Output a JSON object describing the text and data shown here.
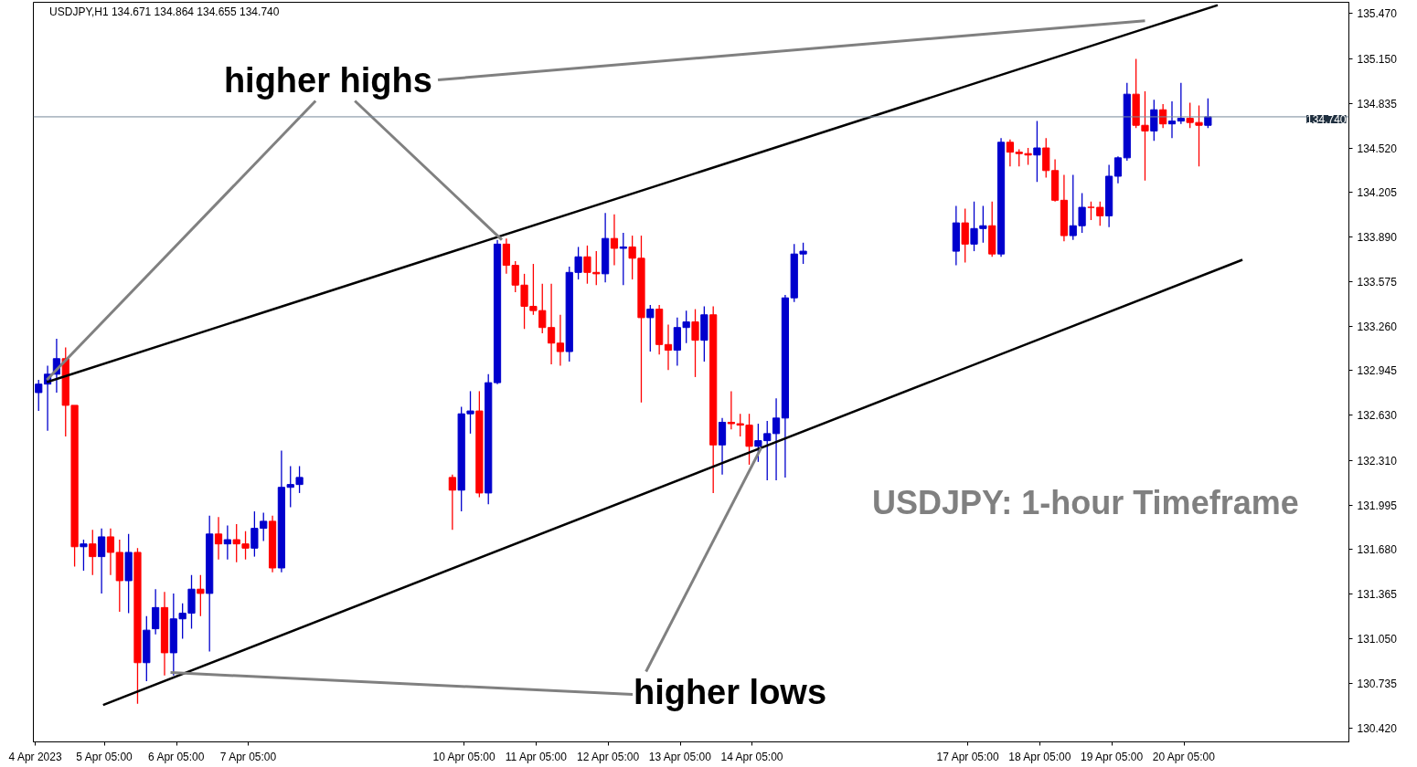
{
  "chart_data": {
    "type": "candlestick",
    "title": "USDJPY,H1  134.671 134.864 134.655 134.740",
    "annotations": [
      {
        "text": "higher highs",
        "x": "2023-04-10T17:30",
        "y": 133.87
      },
      {
        "text": "higher lows",
        "x": "2023-04-14T08:00",
        "y": 132.4
      },
      "USDJPY: 1-hour Timeframe"
    ],
    "x": [
      "2023-04-04T07:00",
      "2023-04-04T10:00",
      "2023-04-04T13:00",
      "2023-04-04T16:00",
      "2023-04-04T19:00",
      "2023-04-04T22:00",
      "2023-04-05T01:00",
      "2023-04-05T04:00",
      "2023-04-05T07:00",
      "2023-04-05T10:00",
      "2023-04-05T13:00",
      "2023-04-05T16:00",
      "2023-04-05T19:00",
      "2023-04-05T22:00",
      "2023-04-06T01:00",
      "2023-04-06T04:00",
      "2023-04-06T07:00",
      "2023-04-06T10:00",
      "2023-04-06T13:00",
      "2023-04-06T16:00",
      "2023-04-06T19:00",
      "2023-04-06T22:00",
      "2023-04-07T01:00",
      "2023-04-07T04:00",
      "2023-04-07T07:00",
      "2023-04-07T10:00",
      "2023-04-07T13:00",
      "2023-04-07T16:00",
      "2023-04-07T19:00",
      "2023-04-07T22:00",
      "2023-04-10T01:00",
      "2023-04-10T04:00",
      "2023-04-10T07:00",
      "2023-04-10T10:00",
      "2023-04-10T13:00",
      "2023-04-10T16:00",
      "2023-04-10T19:00",
      "2023-04-10T22:00",
      "2023-04-11T01:00",
      "2023-04-11T04:00",
      "2023-04-11T07:00",
      "2023-04-11T10:00",
      "2023-04-11T13:00",
      "2023-04-11T16:00",
      "2023-04-11T19:00",
      "2023-04-11T22:00",
      "2023-04-12T01:00",
      "2023-04-12T04:00",
      "2023-04-12T07:00",
      "2023-04-12T10:00",
      "2023-04-12T13:00",
      "2023-04-12T16:00",
      "2023-04-12T19:00",
      "2023-04-12T22:00",
      "2023-04-13T01:00",
      "2023-04-13T04:00",
      "2023-04-13T07:00",
      "2023-04-13T10:00",
      "2023-04-13T13:00",
      "2023-04-13T16:00",
      "2023-04-13T19:00",
      "2023-04-13T22:00",
      "2023-04-14T01:00",
      "2023-04-14T04:00",
      "2023-04-14T07:00",
      "2023-04-14T10:00",
      "2023-04-14T13:00",
      "2023-04-14T16:00",
      "2023-04-14T19:00",
      "2023-04-14T22:00",
      "2023-04-17T01:00",
      "2023-04-17T04:00",
      "2023-04-17T07:00",
      "2023-04-17T10:00",
      "2023-04-17T13:00",
      "2023-04-17T16:00",
      "2023-04-17T19:00",
      "2023-04-17T22:00",
      "2023-04-18T01:00",
      "2023-04-18T04:00",
      "2023-04-18T07:00",
      "2023-04-18T10:00",
      "2023-04-18T13:00",
      "2023-04-18T16:00",
      "2023-04-18T19:00",
      "2023-04-18T22:00",
      "2023-04-19T01:00",
      "2023-04-19T04:00",
      "2023-04-19T07:00",
      "2023-04-19T10:00",
      "2023-04-19T13:00",
      "2023-04-19T16:00",
      "2023-04-19T19:00",
      "2023-04-19T22:00",
      "2023-04-20T01:00",
      "2023-04-20T04:00",
      "2023-04-20T07:00",
      "2023-04-20T10:00",
      "2023-04-20T13:00"
    ],
    "ohlc": [
      [
        132.79,
        132.88,
        132.66,
        132.85
      ],
      [
        132.85,
        132.98,
        132.52,
        132.92
      ],
      [
        132.92,
        133.17,
        132.79,
        133.03
      ],
      [
        133.03,
        133.11,
        132.48,
        132.7
      ],
      [
        132.7,
        132.7,
        131.56,
        131.7
      ],
      [
        131.7,
        131.75,
        131.53,
        131.72
      ],
      [
        131.72,
        131.82,
        131.5,
        131.63
      ],
      [
        131.63,
        131.83,
        131.37,
        131.77
      ],
      [
        131.77,
        131.83,
        131.5,
        131.66
      ],
      [
        131.66,
        131.75,
        131.24,
        131.46
      ],
      [
        131.46,
        131.79,
        131.23,
        131.66
      ],
      [
        131.66,
        131.69,
        130.59,
        130.88
      ],
      [
        130.88,
        131.21,
        130.75,
        131.11
      ],
      [
        131.12,
        131.4,
        131.08,
        131.27
      ],
      [
        131.27,
        131.38,
        130.79,
        130.95
      ],
      [
        130.95,
        131.37,
        130.79,
        131.19
      ],
      [
        131.19,
        131.3,
        131.05,
        131.23
      ],
      [
        131.23,
        131.5,
        131.12,
        131.4
      ],
      [
        131.4,
        131.5,
        131.21,
        131.37
      ],
      [
        131.37,
        131.92,
        130.96,
        131.79
      ],
      [
        131.79,
        131.91,
        131.61,
        131.72
      ],
      [
        131.72,
        131.85,
        131.61,
        131.75
      ],
      [
        131.75,
        131.86,
        131.59,
        131.72
      ],
      [
        131.72,
        131.81,
        131.61,
        131.69
      ],
      [
        131.69,
        131.95,
        131.63,
        131.83
      ],
      [
        131.83,
        131.94,
        131.74,
        131.88
      ],
      [
        131.88,
        131.92,
        131.52,
        131.55
      ],
      [
        131.55,
        132.38,
        131.52,
        132.12
      ],
      [
        132.12,
        132.27,
        131.98,
        132.14
      ],
      [
        132.14,
        132.27,
        132.08,
        132.19
      ],
      [
        132.19,
        132.21,
        131.82,
        132.1
      ],
      [
        132.1,
        132.69,
        131.95,
        132.64
      ],
      [
        132.64,
        132.8,
        132.5,
        132.66
      ],
      [
        132.66,
        132.8,
        132.05,
        132.08
      ],
      [
        132.08,
        132.92,
        132.0,
        132.86
      ],
      [
        132.86,
        133.87,
        132.85,
        133.84
      ],
      [
        133.84,
        133.88,
        133.63,
        133.69
      ],
      [
        133.69,
        133.72,
        133.5,
        133.55
      ],
      [
        133.55,
        133.63,
        133.24,
        133.4
      ],
      [
        133.4,
        133.7,
        133.34,
        133.37
      ],
      [
        133.37,
        133.56,
        133.21,
        133.25
      ],
      [
        133.25,
        133.56,
        132.99,
        133.14
      ],
      [
        133.14,
        133.34,
        132.98,
        133.08
      ],
      [
        133.08,
        133.68,
        133.01,
        133.64
      ],
      [
        133.64,
        133.82,
        133.59,
        133.75
      ],
      [
        133.75,
        133.83,
        133.56,
        133.64
      ],
      [
        133.64,
        133.79,
        133.55,
        133.63
      ],
      [
        133.63,
        134.06,
        133.57,
        133.88
      ],
      [
        133.88,
        134.05,
        133.69,
        133.81
      ],
      [
        133.81,
        133.92,
        133.55,
        133.82
      ],
      [
        133.82,
        133.9,
        133.59,
        133.74
      ],
      [
        133.74,
        133.9,
        132.72,
        133.32
      ],
      [
        133.32,
        133.41,
        133.08,
        133.38
      ],
      [
        133.38,
        133.41,
        133.06,
        133.13
      ],
      [
        133.13,
        133.27,
        132.95,
        133.09
      ],
      [
        133.09,
        133.32,
        132.98,
        133.25
      ],
      [
        133.25,
        133.37,
        133.14,
        133.29
      ],
      [
        133.29,
        133.38,
        132.9,
        133.16
      ],
      [
        133.16,
        133.4,
        133.01,
        133.34
      ],
      [
        133.34,
        133.4,
        132.08,
        132.42
      ],
      [
        132.42,
        132.61,
        132.21,
        132.58
      ],
      [
        132.58,
        132.8,
        132.53,
        132.57
      ],
      [
        132.57,
        132.64,
        132.48,
        132.56
      ],
      [
        132.56,
        132.64,
        132.28,
        132.41
      ],
      [
        132.41,
        132.57,
        132.3,
        132.45
      ],
      [
        132.45,
        132.59,
        132.17,
        132.5
      ],
      [
        132.5,
        132.75,
        132.17,
        132.61
      ],
      [
        132.61,
        133.48,
        132.19,
        133.46
      ],
      [
        133.46,
        133.84,
        133.43,
        133.77
      ],
      [
        133.77,
        133.85,
        133.7,
        133.79
      ],
      [
        133.79,
        134.11,
        133.69,
        133.99
      ],
      [
        133.99,
        134.09,
        133.71,
        133.84
      ],
      [
        133.84,
        134.14,
        133.79,
        133.95
      ],
      [
        133.95,
        134.11,
        133.85,
        133.97
      ],
      [
        133.97,
        134.14,
        133.75,
        133.77
      ],
      [
        133.77,
        134.59,
        133.75,
        134.56
      ],
      [
        134.56,
        134.58,
        134.39,
        134.49
      ],
      [
        134.49,
        134.51,
        134.39,
        134.48
      ],
      [
        134.48,
        134.52,
        134.4,
        134.47
      ],
      [
        134.47,
        134.71,
        134.28,
        134.52
      ],
      [
        134.52,
        134.59,
        134.31,
        134.36
      ],
      [
        134.36,
        134.44,
        134.14,
        134.15
      ],
      [
        134.15,
        134.33,
        133.86,
        133.9
      ],
      [
        133.9,
        134.33,
        133.87,
        133.97
      ],
      [
        133.97,
        134.2,
        133.92,
        134.1
      ],
      [
        134.1,
        134.14,
        134.01,
        134.1
      ],
      [
        134.1,
        134.14,
        133.97,
        134.04
      ],
      [
        134.04,
        134.4,
        133.96,
        134.32
      ],
      [
        134.32,
        134.46,
        134.27,
        134.45
      ],
      [
        134.45,
        134.98,
        134.43,
        134.9
      ],
      [
        134.9,
        135.15,
        134.66,
        134.68
      ],
      [
        134.68,
        134.92,
        134.29,
        134.64
      ],
      [
        134.64,
        134.86,
        134.57,
        134.79
      ],
      [
        134.79,
        134.83,
        134.66,
        134.69
      ],
      [
        134.69,
        134.85,
        134.59,
        134.71
      ],
      [
        134.71,
        134.98,
        134.69,
        134.73
      ],
      [
        134.73,
        134.84,
        134.66,
        134.7
      ],
      [
        134.7,
        134.82,
        134.39,
        134.68
      ],
      [
        134.68,
        134.87,
        134.66,
        134.74
      ]
    ],
    "colors": [
      "#0000cd",
      "#0000cd",
      "#0000cd",
      "#ff0000",
      "#ff0000",
      "#0000cd",
      "#ff0000",
      "#0000cd",
      "#ff0000",
      "#ff0000",
      "#0000cd",
      "#ff0000",
      "#0000cd",
      "#0000cd",
      "#ff0000",
      "#0000cd",
      "#0000cd",
      "#0000cd",
      "#ff0000",
      "#0000cd",
      "#ff0000",
      "#0000cd",
      "#ff0000",
      "#ff0000",
      "#0000cd",
      "#0000cd",
      "#ff0000",
      "#0000cd",
      "#0000cd",
      "#0000cd",
      "#ff0000",
      "#0000cd",
      "#0000cd",
      "#ff0000",
      "#0000cd",
      "#0000cd",
      "#ff0000",
      "#ff0000",
      "#ff0000",
      "#ff0000",
      "#ff0000",
      "#ff0000",
      "#ff0000",
      "#0000cd",
      "#0000cd",
      "#ff0000",
      "#ff0000",
      "#0000cd",
      "#ff0000",
      "#0000cd",
      "#ff0000",
      "#ff0000",
      "#0000cd",
      "#ff0000",
      "#ff0000",
      "#0000cd",
      "#0000cd",
      "#ff0000",
      "#0000cd",
      "#ff0000",
      "#0000cd",
      "#ff0000",
      "#ff0000",
      "#ff0000",
      "#0000cd",
      "#0000cd",
      "#0000cd",
      "#0000cd",
      "#0000cd",
      "#0000cd",
      "#0000cd",
      "#ff0000",
      "#0000cd",
      "#0000cd",
      "#ff0000",
      "#0000cd",
      "#ff0000",
      "#ff0000",
      "#ff0000",
      "#0000cd",
      "#ff0000",
      "#ff0000",
      "#ff0000",
      "#0000cd",
      "#0000cd",
      "#ff0000",
      "#ff0000",
      "#0000cd",
      "#0000cd",
      "#0000cd",
      "#ff0000",
      "#ff0000",
      "#0000cd",
      "#ff0000",
      "#0000cd",
      "#0000cd",
      "#ff0000",
      "#ff0000",
      "#0000cd"
    ],
    "series": [
      {
        "type": "line",
        "color": "#000000",
        "line_style": "solid",
        "x": [
          "2023-04-04T09:45",
          "2023-04-20T16:15"
        ],
        "values": [
          132.864,
          135.53
        ]
      },
      {
        "type": "line",
        "color": "#000000",
        "line_style": "solid",
        "x": [
          "2023-04-05T04:30",
          "2023-04-21T00:30"
        ],
        "values": [
          130.581,
          133.729
        ]
      }
    ],
    "ref_lines": [
      {
        "axis": "y",
        "value": 134.74,
        "label": "134.740",
        "color": "#778899"
      }
    ],
    "xlim": [
      "2023-04-04T05:15",
      "2023-04-22T12:00"
    ],
    "ylim": [
      130.32,
      135.55
    ],
    "xticks": [
      {
        "value": "2023-04-04T06:00",
        "label": "4 Apr 2023"
      },
      {
        "value": "2023-04-05T05:00",
        "label": "5 Apr 05:00"
      },
      {
        "value": "2023-04-06T05:00",
        "label": "6 Apr 05:00"
      },
      {
        "value": "2023-04-07T05:00",
        "label": "7 Apr 05:00"
      },
      {
        "value": "2023-04-10T05:00",
        "label": "10 Apr 05:00"
      },
      {
        "value": "2023-04-11T05:00",
        "label": "11 Apr 05:00"
      },
      {
        "value": "2023-04-12T05:00",
        "label": "12 Apr 05:00"
      },
      {
        "value": "2023-04-13T05:00",
        "label": "13 Apr 05:00"
      },
      {
        "value": "2023-04-14T05:00",
        "label": "14 Apr 05:00"
      },
      {
        "value": "2023-04-17T05:00",
        "label": "17 Apr 05:00"
      },
      {
        "value": "2023-04-18T05:00",
        "label": "18 Apr 05:00"
      },
      {
        "value": "2023-04-19T05:00",
        "label": "19 Apr 05:00"
      },
      {
        "value": "2023-04-20T05:00",
        "label": "20 Apr 05:00"
      }
    ],
    "yticks": [
      {
        "value": 130.42,
        "label": "130.420"
      },
      {
        "value": 130.735,
        "label": "130.735"
      },
      {
        "value": 131.05,
        "label": "131.050"
      },
      {
        "value": 131.365,
        "label": "131.365"
      },
      {
        "value": 131.68,
        "label": "131.680"
      },
      {
        "value": 131.995,
        "label": "131.995"
      },
      {
        "value": 132.31,
        "label": "132.310"
      },
      {
        "value": 132.63,
        "label": "132.630"
      },
      {
        "value": 132.945,
        "label": "132.945"
      },
      {
        "value": 133.26,
        "label": "133.260"
      },
      {
        "value": 133.575,
        "label": "133.575"
      },
      {
        "value": 133.89,
        "label": "133.890"
      },
      {
        "value": 134.205,
        "label": "134.205"
      },
      {
        "value": 134.52,
        "label": "134.520"
      },
      {
        "value": 134.835,
        "label": "134.835"
      },
      {
        "value": 135.15,
        "label": "135.150"
      },
      {
        "value": 135.47,
        "label": "135.470"
      }
    ],
    "grid": false
  }
}
